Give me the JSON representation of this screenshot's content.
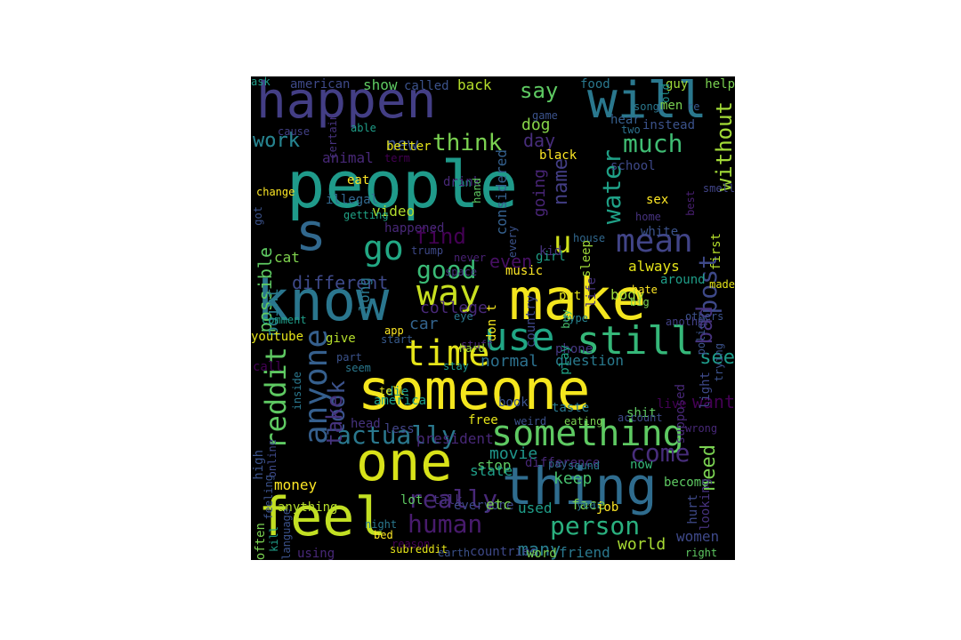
{
  "words": [
    {
      "t": "people",
      "c": "#1f9a8a"
    },
    {
      "t": "someone",
      "c": "#f4e61e"
    },
    {
      "t": "make",
      "c": "#f4e61e"
    },
    {
      "t": "thing",
      "c": "#2f6c8e"
    },
    {
      "t": "know",
      "c": "#2a768e"
    },
    {
      "t": "one",
      "c": "#d8e219"
    },
    {
      "t": "happen",
      "c": "#433e85"
    },
    {
      "t": "will",
      "c": "#2a788e"
    },
    {
      "t": "feel",
      "c": "#c2df23"
    },
    {
      "t": "something",
      "c": "#5ec962"
    },
    {
      "t": "use",
      "c": "#21a685"
    },
    {
      "t": "still",
      "c": "#35b779"
    },
    {
      "t": "way",
      "c": "#c8e020"
    },
    {
      "t": "s",
      "c": "#31688e"
    },
    {
      "t": "mean",
      "c": "#414487"
    },
    {
      "t": "time",
      "c": "#e5e419"
    },
    {
      "t": "go",
      "c": "#22a884"
    },
    {
      "t": "u",
      "c": "#d0e11c"
    },
    {
      "t": "good",
      "c": "#3aba76"
    },
    {
      "t": "anyone",
      "c": "#355f8d"
    },
    {
      "t": "reddit",
      "c": "#5ec962"
    },
    {
      "t": "actually",
      "c": "#2a788e"
    },
    {
      "t": "human",
      "c": "#481b6d"
    },
    {
      "t": "person",
      "c": "#2ab07f"
    },
    {
      "t": "look",
      "c": "#3b528b"
    },
    {
      "t": "take",
      "c": "#46337e"
    },
    {
      "t": "really",
      "c": "#482878"
    },
    {
      "t": "come",
      "c": "#472d7b"
    },
    {
      "t": "find",
      "c": "#440154"
    },
    {
      "t": "water",
      "c": "#1fa187"
    },
    {
      "t": "much",
      "c": "#3fbc73"
    },
    {
      "t": "think",
      "c": "#7ad151"
    },
    {
      "t": "say",
      "c": "#5ec962"
    },
    {
      "t": "work",
      "c": "#26828e"
    },
    {
      "t": "new",
      "c": "#3b528b"
    },
    {
      "t": "day",
      "c": "#472d7b"
    },
    {
      "t": "dog",
      "c": "#86d549"
    },
    {
      "t": "without",
      "c": "#a2da37"
    },
    {
      "t": "possible",
      "c": "#5ec962"
    },
    {
      "t": "different",
      "c": "#3e4989"
    },
    {
      "t": "even",
      "c": "#471063"
    },
    {
      "t": "post",
      "c": "#3e4989"
    },
    {
      "t": "bad",
      "c": "#46327e"
    },
    {
      "t": "see",
      "c": "#1e9b8a"
    },
    {
      "t": "want",
      "c": "#440154"
    },
    {
      "t": "need",
      "c": "#7ad151"
    },
    {
      "t": "normal",
      "c": "#2c718e"
    },
    {
      "t": "question",
      "c": "#297a8e"
    },
    {
      "t": "phone",
      "c": "#453882"
    },
    {
      "t": "car",
      "c": "#33638d"
    },
    {
      "t": "give",
      "c": "#b5de2b"
    },
    {
      "t": "stop",
      "c": "#5ec962"
    },
    {
      "t": "movie",
      "c": "#1f968b"
    },
    {
      "t": "keep",
      "c": "#48c16e"
    },
    {
      "t": "many",
      "c": "#287d8e"
    },
    {
      "t": "world",
      "c": "#a8db34"
    },
    {
      "t": "women",
      "c": "#3e4989"
    },
    {
      "t": "name",
      "c": "#433e85"
    },
    {
      "t": "considered",
      "c": "#34608d"
    },
    {
      "t": "going",
      "c": "#482576"
    },
    {
      "t": "always",
      "c": "#e5e419"
    },
    {
      "t": "country",
      "c": "#3f4788"
    },
    {
      "t": "put",
      "c": "#e2e418"
    },
    {
      "t": "body",
      "c": "#9fda3a"
    },
    {
      "t": "girl",
      "c": "#1fa088"
    },
    {
      "t": "long",
      "c": "#2a788e"
    },
    {
      "t": "point",
      "c": "#277f8e"
    },
    {
      "t": "cat",
      "c": "#7fd34e"
    },
    {
      "t": "video",
      "c": "#b2dd2d"
    },
    {
      "t": "eat",
      "c": "#fde725"
    },
    {
      "t": "animal",
      "c": "#482878"
    },
    {
      "t": "work",
      "c": "#26828e"
    },
    {
      "t": "show",
      "c": "#5ec962"
    },
    {
      "t": "american",
      "c": "#3e4989"
    },
    {
      "t": "called",
      "c": "#3b528b"
    },
    {
      "t": "back",
      "c": "#b5de2b"
    },
    {
      "t": "food",
      "c": "#2a788e"
    },
    {
      "t": "guy",
      "c": "#a0da39"
    },
    {
      "t": "help",
      "c": "#7ad151"
    },
    {
      "t": "song",
      "c": "#2a788e"
    },
    {
      "t": "old",
      "c": "#20928c"
    },
    {
      "t": "m",
      "c": "#31688e"
    },
    {
      "t": "men",
      "c": "#7ad151"
    },
    {
      "t": "re",
      "c": "#38598c"
    },
    {
      "t": "game",
      "c": "#3b528b"
    },
    {
      "t": "hear",
      "c": "#355f8d"
    },
    {
      "t": "instead",
      "c": "#3b528b"
    },
    {
      "t": "black",
      "c": "#fde725"
    },
    {
      "t": "two",
      "c": "#2c728e"
    },
    {
      "t": "better",
      "c": "#e5e419"
    },
    {
      "t": "able",
      "c": "#1f9e89"
    },
    {
      "t": "cause",
      "c": "#424086"
    },
    {
      "t": "certain",
      "c": "#46327e"
    },
    {
      "t": "term",
      "c": "#440154"
    },
    {
      "t": "illegal",
      "c": "#31688e"
    },
    {
      "t": "man",
      "c": "#1f988b"
    },
    {
      "t": "drink",
      "c": "#482878"
    },
    {
      "t": "hand",
      "c": "#5ec962"
    },
    {
      "t": "every",
      "c": "#3b528b"
    },
    {
      "t": "school",
      "c": "#3e4989"
    },
    {
      "t": "sex",
      "c": "#fde725"
    },
    {
      "t": "change",
      "c": "#fde725"
    },
    {
      "t": "got",
      "c": "#3b528b"
    },
    {
      "t": "happened",
      "c": "#482878"
    },
    {
      "t": "getting",
      "c": "#20a386"
    },
    {
      "t": "home",
      "c": "#46327e"
    },
    {
      "t": "best",
      "c": "#481f70"
    },
    {
      "t": "smell",
      "c": "#414487"
    },
    {
      "t": "house",
      "c": "#31688e"
    },
    {
      "t": "kid",
      "c": "#46327e"
    },
    {
      "t": "white",
      "c": "#3b528b"
    },
    {
      "t": "first",
      "c": "#b5de2b"
    },
    {
      "t": "comment",
      "c": "#1f9e89"
    },
    {
      "t": "trump",
      "c": "#3e4989"
    },
    {
      "t": "space",
      "c": "#46327e"
    },
    {
      "t": "never",
      "c": "#482173"
    },
    {
      "t": "music",
      "c": "#fde725"
    },
    {
      "t": "around",
      "c": "#1f9e89"
    },
    {
      "t": "made",
      "c": "#e5e419"
    },
    {
      "t": "big",
      "c": "#7ad151"
    },
    {
      "t": "hate",
      "c": "#fde725"
    },
    {
      "t": "others",
      "c": "#3b528b"
    },
    {
      "t": "police",
      "c": "#3b528b"
    },
    {
      "t": "sleep",
      "c": "#a0da39"
    },
    {
      "t": "life",
      "c": "#46327e"
    },
    {
      "t": "college",
      "c": "#482878"
    },
    {
      "t": "don t",
      "c": "#f4e61e"
    },
    {
      "t": "buy",
      "c": "#48c16e"
    },
    {
      "t": "type",
      "c": "#26828e"
    },
    {
      "t": "another",
      "c": "#424086"
    },
    {
      "t": "trying",
      "c": "#3b528b"
    },
    {
      "t": "youtube",
      "c": "#e5e419"
    },
    {
      "t": "start",
      "c": "#375a8c"
    },
    {
      "t": "app",
      "c": "#fde725"
    },
    {
      "t": "eye",
      "c": "#2a788e"
    },
    {
      "t": "stuff",
      "c": "#482878"
    },
    {
      "t": "play",
      "c": "#20a386"
    },
    {
      "t": "light",
      "c": "#3e4989"
    },
    {
      "t": "call",
      "c": "#440154"
    },
    {
      "t": "seem",
      "c": "#2a788e"
    },
    {
      "t": "part",
      "c": "#3b528b"
    },
    {
      "t": "die",
      "c": "#1f988b"
    },
    {
      "t": "hard",
      "c": "#a0da39"
    },
    {
      "t": "stay",
      "c": "#1f988b"
    },
    {
      "t": "inside",
      "c": "#2a788e"
    },
    {
      "t": "supposed",
      "c": "#482878"
    },
    {
      "t": "live",
      "c": "#440154"
    },
    {
      "t": "tell",
      "c": "#e5e419"
    },
    {
      "t": "book",
      "c": "#3b528b"
    },
    {
      "t": "america",
      "c": "#1f9e89"
    },
    {
      "t": "shit",
      "c": "#5ec962"
    },
    {
      "t": "taste",
      "c": "#2a788e"
    },
    {
      "t": "account",
      "c": "#3e4989"
    },
    {
      "t": "wrong",
      "c": "#482878"
    },
    {
      "t": "head",
      "c": "#46327e"
    },
    {
      "t": "less",
      "c": "#414487"
    },
    {
      "t": "free",
      "c": "#e5e419"
    },
    {
      "t": "weird",
      "c": "#3b528b"
    },
    {
      "t": "eating",
      "c": "#7ad151"
    },
    {
      "t": "online",
      "c": "#3e4989"
    },
    {
      "t": "president",
      "c": "#482878"
    },
    {
      "t": "feeling",
      "c": "#3b528b"
    },
    {
      "t": "difference",
      "c": "#482878"
    },
    {
      "t": "pay",
      "c": "#31688e"
    },
    {
      "t": "sound",
      "c": "#2a788e"
    },
    {
      "t": "state",
      "c": "#1f9e89"
    },
    {
      "t": "now",
      "c": "#35b779"
    },
    {
      "t": "become",
      "c": "#5ec962"
    },
    {
      "t": "high",
      "c": "#3b528b"
    },
    {
      "t": "money",
      "c": "#fde725"
    },
    {
      "t": "anything",
      "c": "#b5de2b"
    },
    {
      "t": "lot",
      "c": "#5ec962"
    },
    {
      "t": "talk",
      "c": "#46327e"
    },
    {
      "t": "everyone",
      "c": "#3e4989"
    },
    {
      "t": "etc",
      "c": "#7ad151"
    },
    {
      "t": "used",
      "c": "#1f9e89"
    },
    {
      "t": "face",
      "c": "#7ad151"
    },
    {
      "t": "year",
      "c": "#2a788e"
    },
    {
      "t": "job",
      "c": "#fde725"
    },
    {
      "t": "hurt",
      "c": "#3e4989"
    },
    {
      "t": "looking",
      "c": "#46327e"
    },
    {
      "t": "language",
      "c": "#3b528b"
    },
    {
      "t": "kill",
      "c": "#1f9e89"
    },
    {
      "t": "night",
      "c": "#2a788e"
    },
    {
      "t": "bed",
      "c": "#fde725"
    },
    {
      "t": "often",
      "c": "#7ad151"
    },
    {
      "t": "using",
      "c": "#482878"
    },
    {
      "t": "subreddit",
      "c": "#e5e419"
    },
    {
      "t": "earth",
      "c": "#3b528b"
    },
    {
      "t": "countries",
      "c": "#3e4989"
    },
    {
      "t": "word",
      "c": "#7ad151"
    },
    {
      "t": "friend",
      "c": "#2a788e"
    },
    {
      "t": "right",
      "c": "#5ec962"
    },
    {
      "t": "reason",
      "c": "#440154"
    },
    {
      "t": "ask",
      "c": "#1f9e89"
    }
  ]
}
